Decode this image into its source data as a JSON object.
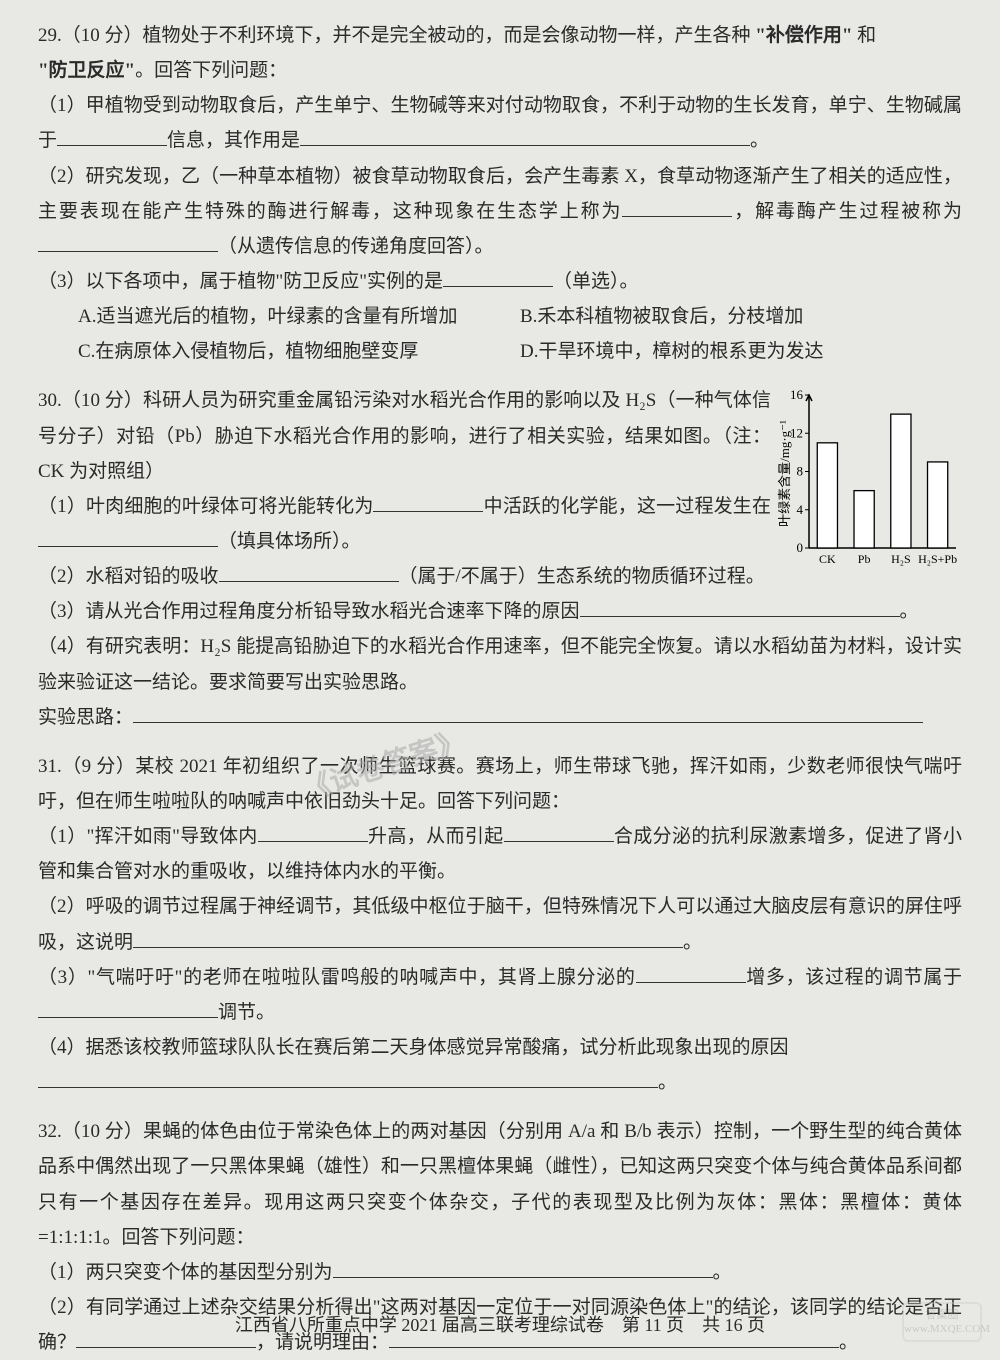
{
  "q29": {
    "header": "29.（10 分）植物处于不利环境下，并不是完全被动的，而是会像动物一样，产生各种",
    "bold1": "\"补偿作用\"",
    "mid": " 和",
    "bold2": "\"防卫反应\"",
    "tail": "。回答下列问题：",
    "p1a": "（1）甲植物受到动物取食后，产生单宁、生物碱等来对付动物取食，不利于动物的生长发育，单宁、生物碱属于",
    "p1b": "信息，其作用是",
    "p1c": "。",
    "p2a": "（2）研究发现，乙（一种草本植物）被食草动物取食后，会产生毒素 X，食草动物逐渐产生了相关的适应性，主要表现在能产生特殊的酶进行解毒，这种现象在生态学上称为",
    "p2b": "，解毒酶产生过程被称为",
    "p2c": "（从遗传信息的传递角度回答）。",
    "p3": "（3）以下各项中，属于植物\"防卫反应\"实例的是",
    "p3b": "（单选）。",
    "optA": "A.适当遮光后的植物，叶绿素的含量有所增加",
    "optB": "B.禾本科植物被取食后，分枝增加",
    "optC": "C.在病原体入侵植物后，植物细胞壁变厚",
    "optD": "D.干旱环境中，樟树的根系更为发达"
  },
  "q30": {
    "header": "30.（10 分）科研人员为研究重金属铅污染对水稻光合作用的影响以及 H₂S（一种气体信号分子）对铅（Pb）胁迫下水稻光合作用的影响，进行了相关实验，结果如图。（注：CK 为对照组）",
    "p1a": "（1）叶肉细胞的叶绿体可将光能转化为",
    "p1b": "中活跃的化学能，这一过程发生在",
    "p1c": "（填具体场所）。",
    "p2a": "（2）水稻对铅的吸收",
    "p2b": "（属于/不属于）生态系统的物质循环过程。",
    "p3a": "（3）请从光合作用过程角度分析铅导致水稻光合速率下降的原因",
    "p3b": "。",
    "p4": "（4）有研究表明：H₂S 能提高铅胁迫下的水稻光合作用速率，但不能完全恢复。请以水稻幼苗为材料，设计实验来验证这一结论。要求简要写出实验思路。",
    "p4a": "实验思路：",
    "chart": {
      "type": "bar",
      "categories": [
        "CK",
        "Pb",
        "H₂S",
        "H₂S+Pb"
      ],
      "values": [
        11,
        6,
        14,
        9
      ],
      "ylim": [
        0,
        16
      ],
      "ytick_step": 4,
      "yticks": [
        0,
        4,
        8,
        12,
        16
      ],
      "bar_color": "#ffffff",
      "bar_stroke": "#000000",
      "axis_color": "#000000",
      "bg": "#e8e8e4",
      "ylabel": "叶绿素含量/mg·g⁻¹",
      "bar_width": 0.55,
      "font_size": 13
    }
  },
  "q31": {
    "header": "31.（9 分）某校 2021 年初组织了一次师生篮球赛。赛场上，师生带球飞驰，挥汗如雨，少数老师很快气喘吁吁，但在师生啦啦队的呐喊声中依旧劲头十足。回答下列问题：",
    "p1a": "（1）\"挥汗如雨\"导致体内",
    "p1b": "升高，从而引起",
    "p1c": "合成分泌的抗利尿激素增多，促进了肾小管和集合管对水的重吸收，以维持体内水的平衡。",
    "p2a": "（2）呼吸的调节过程属于神经调节，其低级中枢位于脑干，但特殊情况下人可以通过大脑皮层有意识的屏住呼吸，这说明",
    "p2b": "。",
    "p3a": "（3）\"气喘吁吁\"的老师在啦啦队雷鸣般的呐喊声中，其肾上腺分泌的",
    "p3b": "增多，该过程的调节属于",
    "p3c": "调节。",
    "p4a": "（4）据悉该校教师篮球队队长在赛后第二天身体感觉异常酸痛，试分析此现象出现的原因",
    "p4b": "。"
  },
  "q32": {
    "header": "32.（10 分）果蝇的体色由位于常染色体上的两对基因（分别用 A/a 和 B/b 表示）控制，一个野生型的纯合黄体品系中偶然出现了一只黑体果蝇（雄性）和一只黑檀体果蝇（雌性），已知这两只突变个体与纯合黄体品系间都只有一个基因存在差异。现用这两只突变个体杂交，子代的表现型及比例为灰体：黑体：黑檀体：黄体=1:1:1:1。回答下列问题：",
    "p1a": "（1）两只突变个体的基因型分别为",
    "p1b": "。",
    "p2a": "（2）有同学通过上述杂交结果分析得出\"这两对基因一定位于一对同源染色体上\"的结论，该同学的结论是否正确？",
    "p2b": "，请说明理由：",
    "p2c": "。"
  },
  "footer": {
    "text": "江西省八所重点中学 2021 届高三联考理综试卷　第 11 页　共 16 页"
  },
  "watermark": "《试卷答案》",
  "corner": "答案圈\nwww.MXQE.COM"
}
